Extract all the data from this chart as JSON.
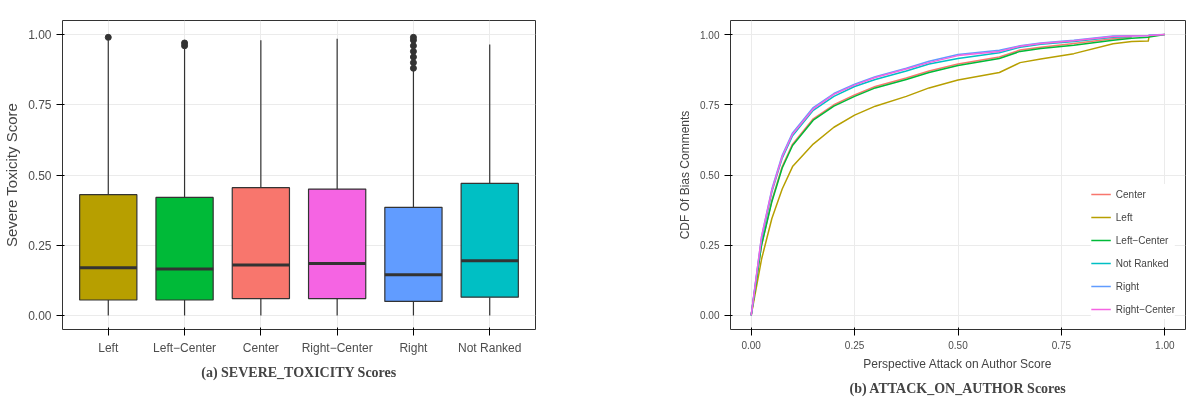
{
  "chart_data": [
    {
      "type": "box",
      "title": "(a) SEVERE_TOXICITY Scores",
      "ylabel": "Severe Toxicity Score",
      "categories": [
        "Left",
        "Left−Center",
        "Center",
        "Right−Center",
        "Right",
        "Not Ranked"
      ],
      "colors": [
        "#b79f00",
        "#00ba38",
        "#f8766d",
        "#f564e3",
        "#619cff",
        "#00bfc4"
      ],
      "boxes": [
        {
          "low": 0,
          "q1": 0.055,
          "median": 0.17,
          "q3": 0.43,
          "high": 0.98,
          "outliers": [
            0.99
          ]
        },
        {
          "low": 0,
          "q1": 0.055,
          "median": 0.165,
          "q3": 0.42,
          "high": 0.95,
          "outliers": [
            0.96,
            0.97
          ]
        },
        {
          "low": 0,
          "q1": 0.06,
          "median": 0.18,
          "q3": 0.455,
          "high": 0.98
        },
        {
          "low": 0,
          "q1": 0.06,
          "median": 0.185,
          "q3": 0.45,
          "high": 0.985
        },
        {
          "low": 0,
          "q1": 0.05,
          "median": 0.145,
          "q3": 0.385,
          "high": 0.87,
          "outliers": [
            0.88,
            0.9,
            0.92,
            0.94,
            0.96,
            0.98,
            0.99
          ]
        },
        {
          "low": 0,
          "q1": 0.065,
          "median": 0.195,
          "q3": 0.47,
          "high": 0.965
        }
      ],
      "ylim": [
        -0.05,
        1.05
      ],
      "yticks": [
        {
          "value": 0,
          "label": "0.00"
        },
        {
          "value": 0.25,
          "label": "0.25"
        },
        {
          "value": 0.5,
          "label": "0.50"
        },
        {
          "value": 0.75,
          "label": "0.75"
        },
        {
          "value": 1,
          "label": "1.00"
        }
      ],
      "grid": true
    },
    {
      "type": "line",
      "title": "(b) ATTACK_ON_AUTHOR Scores",
      "xlabel": "Perspective Attack on Author Score",
      "ylabel": "CDF Of Bias Comments",
      "x": [
        0,
        0.025,
        0.05,
        0.075,
        0.1,
        0.15,
        0.2,
        0.25,
        0.3,
        0.375,
        0.43,
        0.5,
        0.6,
        0.65,
        0.7,
        0.78,
        0.875,
        0.92,
        0.96,
        0.962,
        1.0
      ],
      "series": [
        {
          "name": "Center",
          "color": "#f8766d",
          "values": [
            0,
            0.25,
            0.41,
            0.53,
            0.61,
            0.7,
            0.75,
            0.785,
            0.815,
            0.845,
            0.87,
            0.895,
            0.92,
            0.945,
            0.955,
            0.968,
            0.985,
            0.99,
            null,
            null,
            null
          ]
        },
        {
          "name": "Left",
          "color": "#b79f00",
          "values": [
            0,
            0.2,
            0.345,
            0.45,
            0.53,
            0.61,
            0.67,
            0.713,
            0.745,
            0.78,
            0.81,
            0.838,
            0.865,
            0.9,
            0.913,
            0.932,
            0.967,
            0.975,
            0.977,
            0.995,
            1.0
          ]
        },
        {
          "name": "Left−Center",
          "color": "#00ba38",
          "values": [
            0,
            0.25,
            0.405,
            0.525,
            0.605,
            0.695,
            0.745,
            0.78,
            0.81,
            0.84,
            0.865,
            0.89,
            0.915,
            0.94,
            0.95,
            0.962,
            0.98,
            0.987,
            0.99,
            0.991,
            1.0
          ]
        },
        {
          "name": "Not Ranked",
          "color": "#00bfc4",
          "values": [
            0,
            0.27,
            0.44,
            0.56,
            0.64,
            0.73,
            0.78,
            0.815,
            0.84,
            0.87,
            0.895,
            0.915,
            0.935,
            0.955,
            0.965,
            0.975,
            0.99,
            0.993,
            null,
            null,
            null
          ]
        },
        {
          "name": "Right",
          "color": "#619cff",
          "values": [
            0,
            0.28,
            0.45,
            0.57,
            0.65,
            0.74,
            0.79,
            0.823,
            0.85,
            0.88,
            0.905,
            0.929,
            0.944,
            0.96,
            0.97,
            0.98,
            0.995,
            0.996,
            0.997,
            0.998,
            1.0
          ]
        },
        {
          "name": "Right−Center",
          "color": "#f564e3",
          "values": [
            0,
            0.28,
            0.445,
            0.565,
            0.645,
            0.735,
            0.787,
            0.82,
            0.847,
            0.877,
            0.9,
            0.925,
            0.94,
            0.958,
            0.968,
            0.978,
            0.993,
            0.995,
            0.996,
            0.997,
            1.0
          ]
        }
      ],
      "xlim": [
        -0.05,
        1.05
      ],
      "xticks": [
        {
          "value": 0,
          "label": "0.00"
        },
        {
          "value": 0.25,
          "label": "0.25"
        },
        {
          "value": 0.5,
          "label": "0.50"
        },
        {
          "value": 0.75,
          "label": "0.75"
        },
        {
          "value": 1,
          "label": "1.00"
        }
      ],
      "ylim": [
        -0.05,
        1.05
      ],
      "yticks": [
        {
          "value": 0,
          "label": "0.00"
        },
        {
          "value": 0.25,
          "label": "0.25"
        },
        {
          "value": 0.5,
          "label": "0.50"
        },
        {
          "value": 0.75,
          "label": "0.75"
        },
        {
          "value": 1,
          "label": "1.00"
        }
      ],
      "grid": true,
      "legend": "bottom right"
    }
  ]
}
